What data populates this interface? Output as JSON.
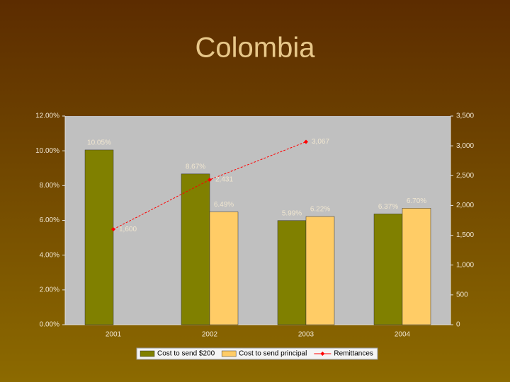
{
  "chart_data": {
    "type": "bar",
    "title": "Colombia",
    "categories": [
      "2001",
      "2002",
      "2003",
      "2004"
    ],
    "series": [
      {
        "name": "Cost to send $200",
        "color": "#808000",
        "values": [
          10.05,
          8.67,
          5.99,
          6.37
        ],
        "value_labels": [
          "10.05%",
          "8.67%",
          "5.99%",
          "6.37%"
        ]
      },
      {
        "name": "Cost to send principal",
        "color": "#ffcc66",
        "values": [
          null,
          6.49,
          6.22,
          6.7
        ],
        "value_labels": [
          null,
          "6.49%",
          "6.22%",
          "6.70%"
        ]
      },
      {
        "name": "Remittances",
        "color": "#ff0000",
        "type": "line",
        "axis": "y2",
        "values": [
          1600,
          2431,
          3067,
          null
        ],
        "value_labels": [
          "1,600",
          "2,431",
          "3,067",
          null
        ]
      }
    ],
    "ylim": [
      0,
      12
    ],
    "yticks": [
      {
        "value": 0,
        "label": "0.00%"
      },
      {
        "value": 2,
        "label": "2.00%"
      },
      {
        "value": 4,
        "label": "4.00%"
      },
      {
        "value": 6,
        "label": "6.00%"
      },
      {
        "value": 8,
        "label": "8.00%"
      },
      {
        "value": 10,
        "label": "10.00%"
      },
      {
        "value": 12,
        "label": "12.00%"
      }
    ],
    "y2lim": [
      0,
      3500
    ],
    "y2ticks": [
      0,
      500,
      {
        "value": 1000,
        "label": "1,000"
      },
      {
        "value": 1500,
        "label": "1,500"
      },
      {
        "value": 2000,
        "label": "2,000"
      },
      {
        "value": 2500,
        "label": "2,500"
      },
      {
        "value": 3000,
        "label": "3,000"
      },
      {
        "value": 3500,
        "label": "3,500"
      }
    ],
    "legend": "bottom"
  }
}
